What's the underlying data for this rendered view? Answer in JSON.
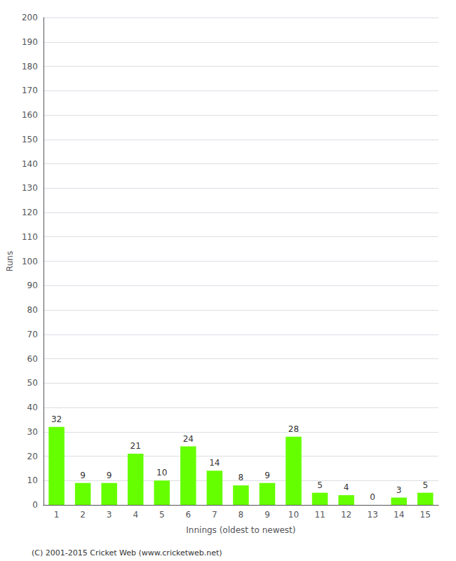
{
  "chart_data": {
    "type": "bar",
    "xlabel": "Innings (oldest to newest)",
    "ylabel": "Runs",
    "categories": [
      1,
      2,
      3,
      4,
      5,
      6,
      7,
      8,
      9,
      10,
      11,
      12,
      13,
      14,
      15
    ],
    "values": [
      32,
      9,
      9,
      21,
      10,
      24,
      14,
      8,
      9,
      28,
      5,
      4,
      0,
      3,
      5
    ],
    "color": "#66ff00",
    "ylim": [
      0,
      200
    ],
    "yticks": [
      0,
      10,
      20,
      30,
      40,
      50,
      60,
      70,
      80,
      90,
      100,
      110,
      120,
      130,
      140,
      150,
      160,
      170,
      180,
      190,
      200
    ],
    "grid": true,
    "data_labels": true,
    "annotations": [
      "(C) 2001-2015 Cricket Web (www.cricketweb.net)"
    ]
  }
}
